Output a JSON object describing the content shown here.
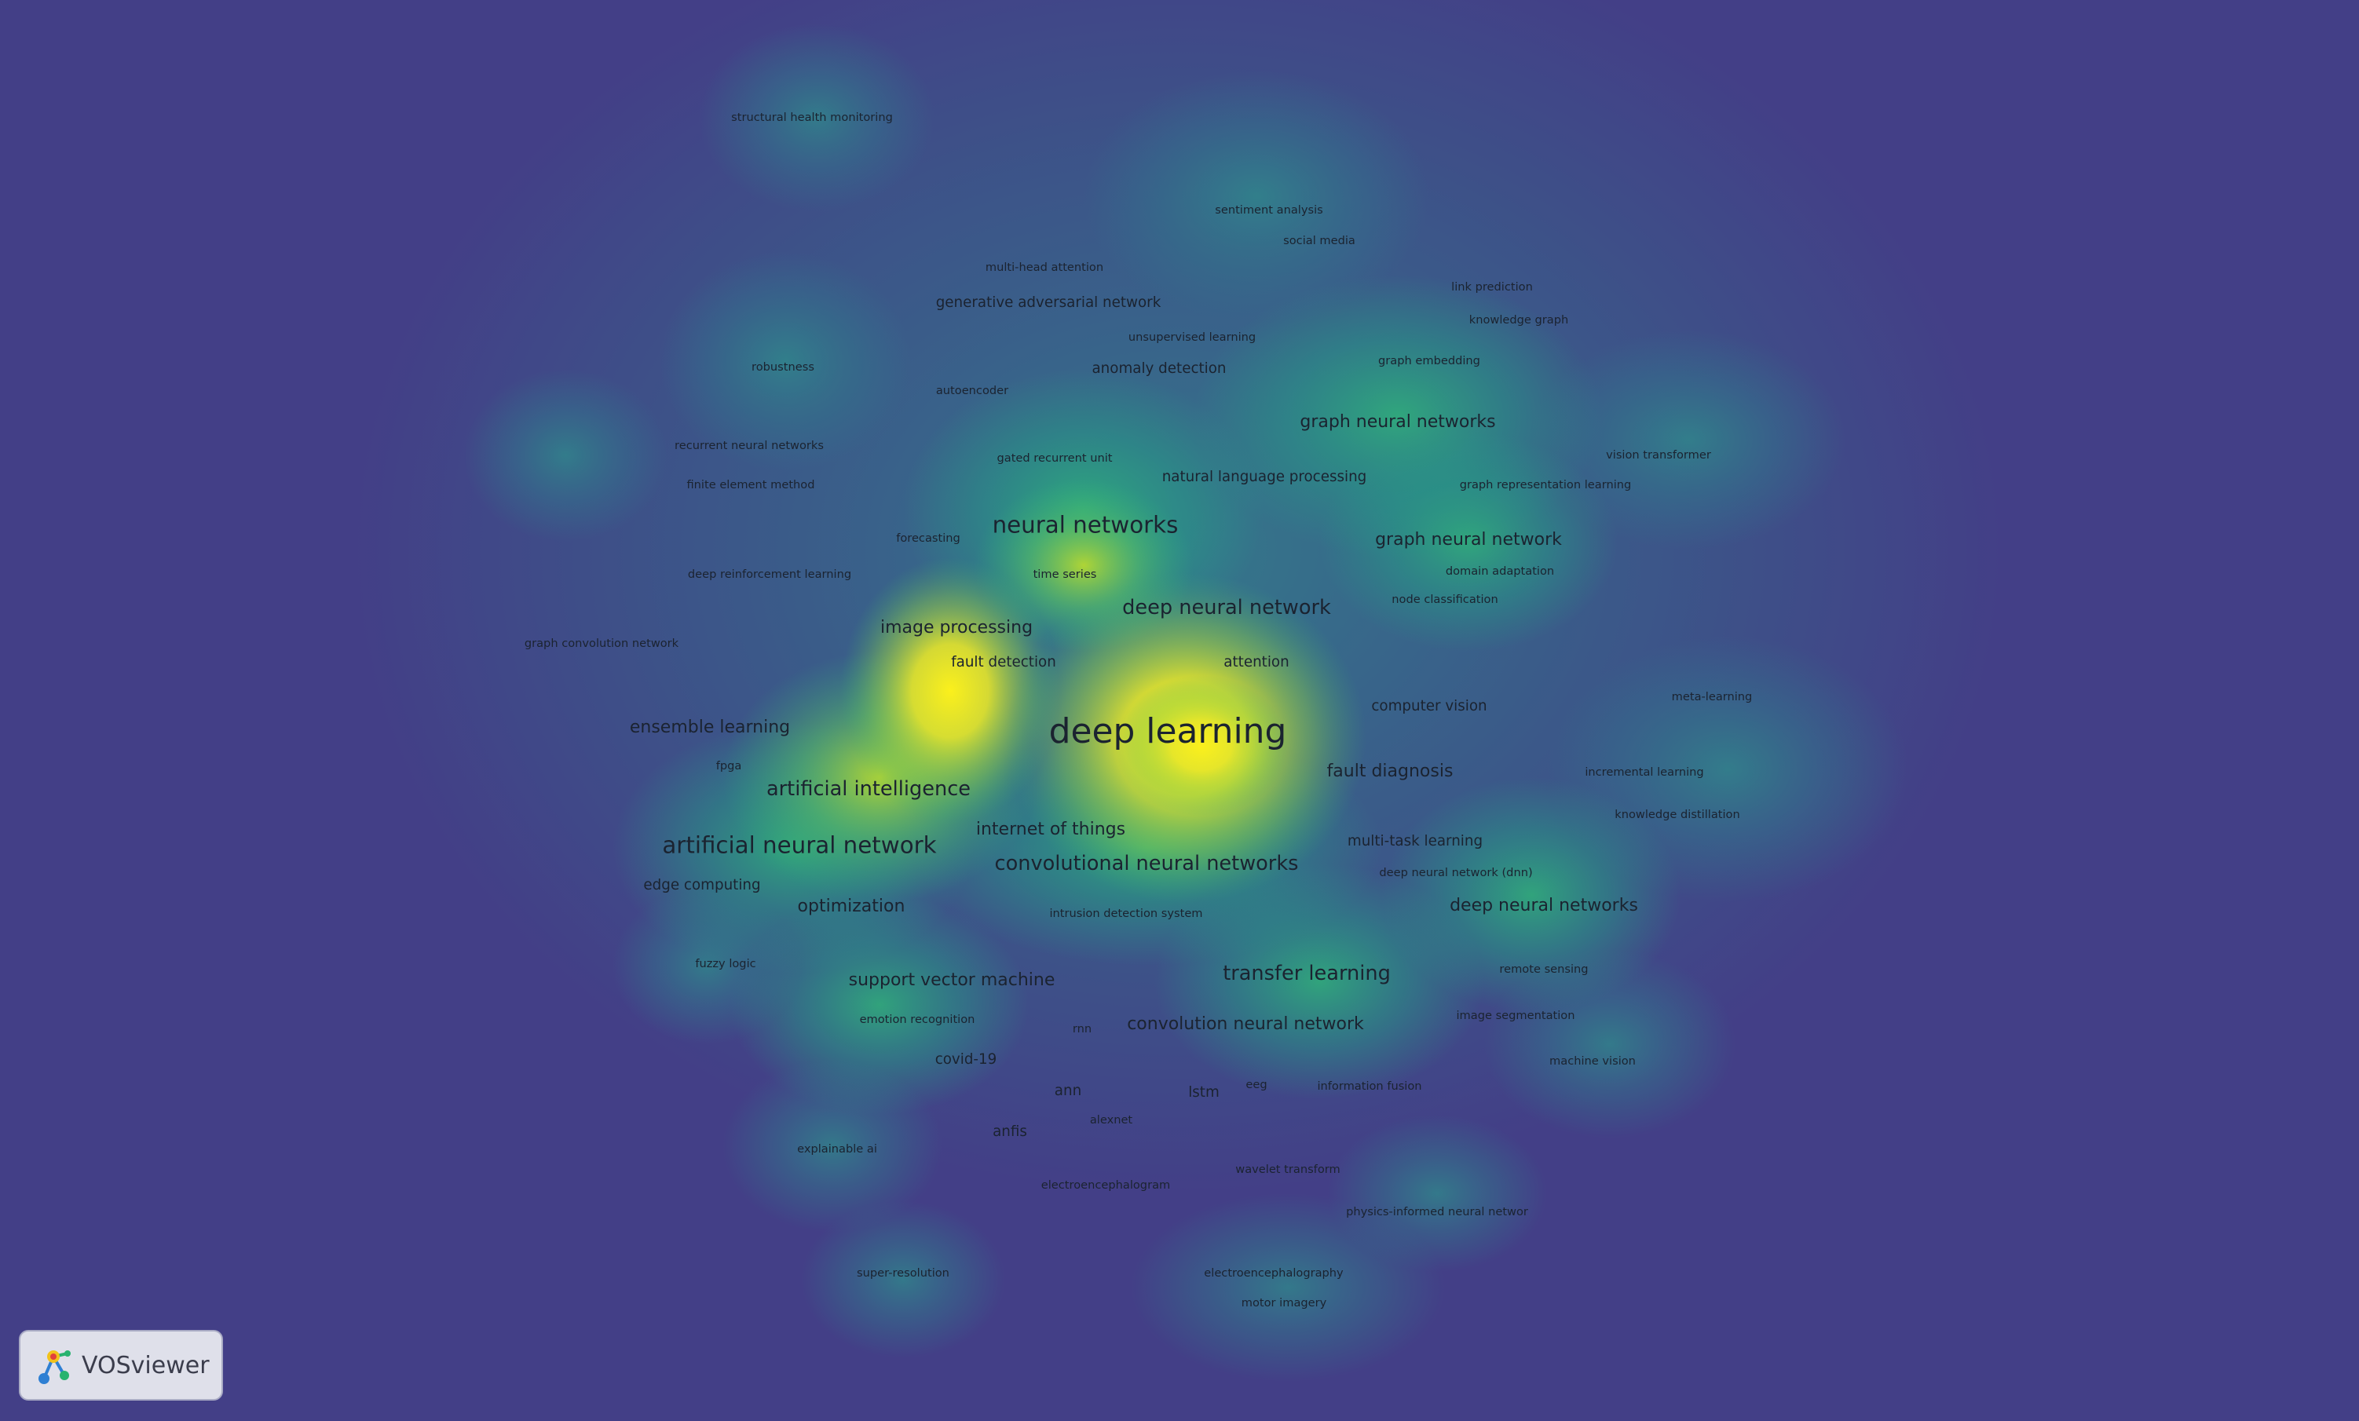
{
  "app": {
    "name": "VOSviewer"
  },
  "colors": {
    "background": "#433f87",
    "low_density": "#2f7d8c",
    "mid_density": "#2bb07f",
    "high_density": "#a6d13a",
    "peak_density": "#f8ee1e",
    "label": "#1b2330"
  },
  "keywords": [
    {
      "term": "structural health monitoring",
      "weight": 4
    },
    {
      "term": "sentiment analysis",
      "weight": 4
    },
    {
      "term": "social media",
      "weight": 4
    },
    {
      "term": "multi-head attention",
      "weight": 4
    },
    {
      "term": "link prediction",
      "weight": 4
    },
    {
      "term": "generative adversarial network",
      "weight": 5
    },
    {
      "term": "knowledge graph",
      "weight": 4
    },
    {
      "term": "unsupervised learning",
      "weight": 4
    },
    {
      "term": "robustness",
      "weight": 4
    },
    {
      "term": "anomaly detection",
      "weight": 5
    },
    {
      "term": "graph embedding",
      "weight": 4
    },
    {
      "term": "autoencoder",
      "weight": 4
    },
    {
      "term": "graph neural networks",
      "weight": 6
    },
    {
      "term": "recurrent neural networks",
      "weight": 4
    },
    {
      "term": "vision transformer",
      "weight": 4
    },
    {
      "term": "gated recurrent unit",
      "weight": 4
    },
    {
      "term": "natural language processing",
      "weight": 5
    },
    {
      "term": "finite element method",
      "weight": 4
    },
    {
      "term": "graph representation learning",
      "weight": 4
    },
    {
      "term": "neural networks",
      "weight": 8
    },
    {
      "term": "forecasting",
      "weight": 4
    },
    {
      "term": "graph neural network",
      "weight": 6
    },
    {
      "term": "deep reinforcement learning",
      "weight": 4
    },
    {
      "term": "time series",
      "weight": 4
    },
    {
      "term": "domain adaptation",
      "weight": 4
    },
    {
      "term": "node classification",
      "weight": 4
    },
    {
      "term": "deep neural network",
      "weight": 7
    },
    {
      "term": "image processing",
      "weight": 6
    },
    {
      "term": "graph convolution network",
      "weight": 4
    },
    {
      "term": "fault detection",
      "weight": 5
    },
    {
      "term": "attention",
      "weight": 5
    },
    {
      "term": "meta-learning",
      "weight": 4
    },
    {
      "term": "computer vision",
      "weight": 5
    },
    {
      "term": "deep learning",
      "weight": 12
    },
    {
      "term": "ensemble learning",
      "weight": 6
    },
    {
      "term": "fpga",
      "weight": 4
    },
    {
      "term": "fault diagnosis",
      "weight": 6
    },
    {
      "term": "incremental learning",
      "weight": 4
    },
    {
      "term": "artificial intelligence",
      "weight": 7
    },
    {
      "term": "knowledge distillation",
      "weight": 4
    },
    {
      "term": "internet of things",
      "weight": 6
    },
    {
      "term": "multi-task learning",
      "weight": 5
    },
    {
      "term": "artificial neural network",
      "weight": 8
    },
    {
      "term": "convolutional neural networks",
      "weight": 7
    },
    {
      "term": "deep neural network (dnn)",
      "weight": 4
    },
    {
      "term": "edge computing",
      "weight": 5
    },
    {
      "term": "optimization",
      "weight": 6
    },
    {
      "term": "deep neural networks",
      "weight": 6
    },
    {
      "term": "intrusion detection system",
      "weight": 4
    },
    {
      "term": "fuzzy logic",
      "weight": 4
    },
    {
      "term": "remote sensing",
      "weight": 4
    },
    {
      "term": "support vector machine",
      "weight": 6
    },
    {
      "term": "transfer learning",
      "weight": 7
    },
    {
      "term": "emotion recognition",
      "weight": 4
    },
    {
      "term": "image segmentation",
      "weight": 4
    },
    {
      "term": "rnn",
      "weight": 4
    },
    {
      "term": "convolution neural network",
      "weight": 6
    },
    {
      "term": "covid-19",
      "weight": 5
    },
    {
      "term": "machine vision",
      "weight": 4
    },
    {
      "term": "ann",
      "weight": 5
    },
    {
      "term": "eeg",
      "weight": 4
    },
    {
      "term": "lstm",
      "weight": 5
    },
    {
      "term": "information fusion",
      "weight": 4
    },
    {
      "term": "alexnet",
      "weight": 4
    },
    {
      "term": "anfis",
      "weight": 5
    },
    {
      "term": "explainable ai",
      "weight": 4
    },
    {
      "term": "wavelet transform",
      "weight": 4
    },
    {
      "term": "electroencephalogram",
      "weight": 4
    },
    {
      "term": "physics-informed neural networ",
      "weight": 4
    },
    {
      "term": "super-resolution",
      "weight": 4
    },
    {
      "term": "electroencephalography",
      "weight": 4
    },
    {
      "term": "motor imagery",
      "weight": 4
    }
  ]
}
